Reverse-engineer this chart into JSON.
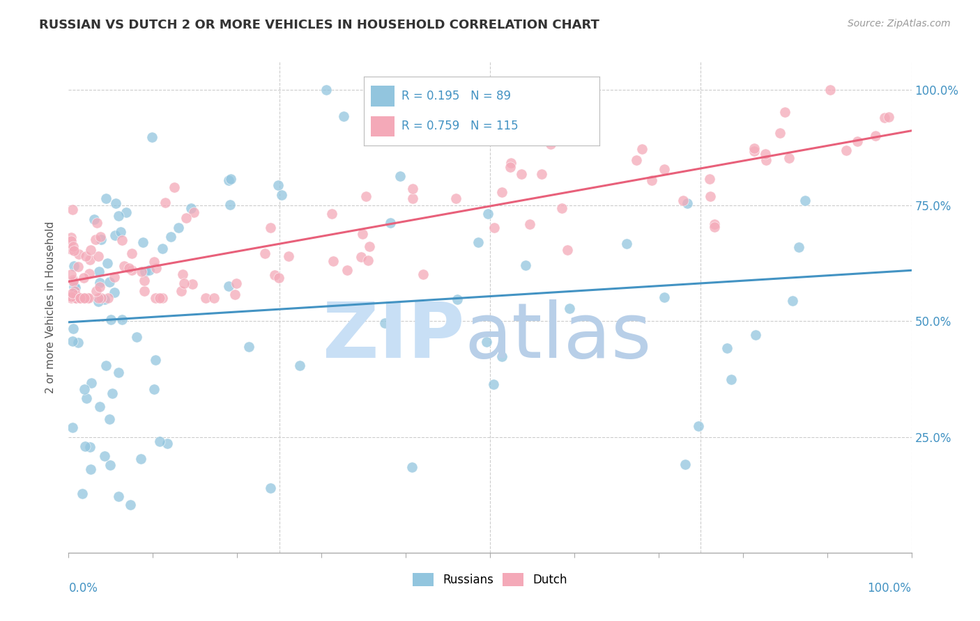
{
  "title": "RUSSIAN VS DUTCH 2 OR MORE VEHICLES IN HOUSEHOLD CORRELATION CHART",
  "source": "Source: ZipAtlas.com",
  "ylabel": "2 or more Vehicles in Household",
  "russian_color": "#92c5de",
  "dutch_color": "#f4a9b8",
  "russian_line_color": "#4393c3",
  "dutch_line_color": "#e8607a",
  "russian_R": 0.195,
  "russian_N": 89,
  "dutch_R": 0.759,
  "dutch_N": 115,
  "legend_label_russian": "Russians",
  "legend_label_dutch": "Dutch",
  "watermark_zip_color": "#c8dff5",
  "watermark_atlas_color": "#b8cfe8",
  "tick_color": "#4393c3",
  "title_color": "#333333",
  "source_color": "#999999",
  "ylabel_color": "#555555",
  "grid_color": "#cccccc",
  "spine_color": "#aaaaaa"
}
